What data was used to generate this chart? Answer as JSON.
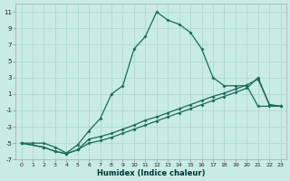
{
  "xlabel": "Humidex (Indice chaleur)",
  "xlim": [
    -0.5,
    23.5
  ],
  "ylim": [
    -7,
    12
  ],
  "xticks": [
    0,
    1,
    2,
    3,
    4,
    5,
    6,
    7,
    8,
    9,
    10,
    11,
    12,
    13,
    14,
    15,
    16,
    17,
    18,
    19,
    20,
    21,
    22,
    23
  ],
  "yticks": [
    -7,
    -5,
    -3,
    -1,
    1,
    3,
    5,
    7,
    9,
    11
  ],
  "background_color": "#c8ebe4",
  "grid_color": "#a8d8cc",
  "line_color": "#1a6b5a",
  "curve_x": [
    0,
    1,
    2,
    3,
    4,
    5,
    6,
    7,
    8,
    9,
    10,
    11,
    12,
    13,
    14,
    15,
    16,
    17,
    18,
    19,
    20,
    21,
    22,
    23
  ],
  "curve_y": [
    -5,
    -5,
    -5,
    -5.5,
    -6.2,
    -5.2,
    -3.5,
    -2.0,
    1.0,
    2.0,
    6.5,
    8.0,
    11.0,
    10.0,
    9.5,
    8.5,
    6.5,
    3.0,
    2.0,
    2.0,
    2.0,
    -0.5,
    -0.5,
    -0.5
  ],
  "line2_x": [
    0,
    2,
    3,
    4,
    5,
    6,
    7,
    8,
    9,
    10,
    11,
    12,
    13,
    14,
    15,
    16,
    17,
    18,
    19,
    20,
    21,
    22,
    23
  ],
  "line2_y": [
    -5,
    -5.5,
    -6.0,
    -6.3,
    -5.8,
    -4.5,
    -4.2,
    -3.8,
    -3.3,
    -2.8,
    -2.2,
    -1.8,
    -1.3,
    -0.8,
    -0.3,
    0.2,
    0.7,
    1.1,
    1.6,
    2.1,
    2.8,
    -0.3,
    -0.5
  ],
  "line3_x": [
    0,
    2,
    3,
    4,
    5,
    6,
    7,
    8,
    9,
    10,
    11,
    12,
    13,
    14,
    15,
    16,
    17,
    18,
    19,
    20,
    21,
    22,
    23
  ],
  "line3_y": [
    -5,
    -5.5,
    -6.0,
    -6.3,
    -5.8,
    -5.0,
    -4.7,
    -4.3,
    -3.8,
    -3.3,
    -2.8,
    -2.3,
    -1.8,
    -1.3,
    -0.8,
    -0.3,
    0.2,
    0.7,
    1.2,
    1.7,
    3.0,
    -0.3,
    -0.5
  ]
}
